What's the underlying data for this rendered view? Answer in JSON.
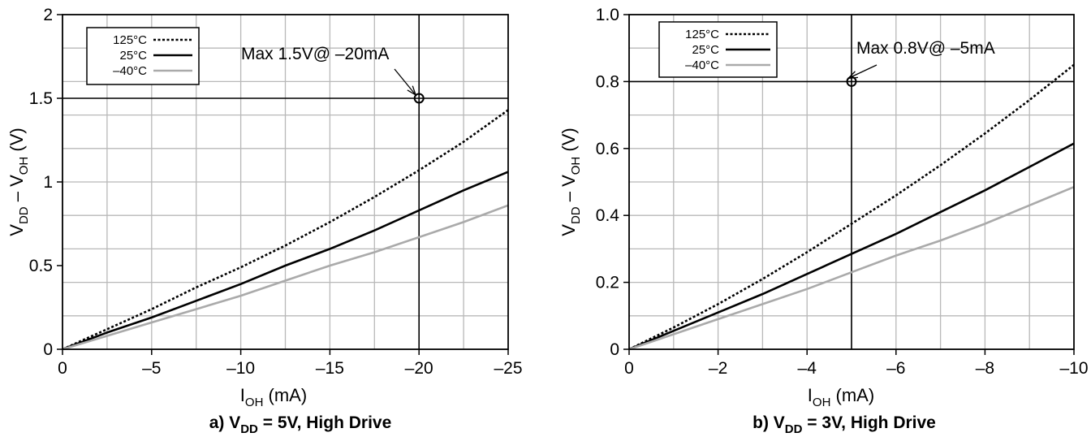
{
  "chart_data": [
    {
      "type": "line",
      "caption": {
        "pre": "a) V",
        "sub": "DD",
        "post": " = 5V, High Drive"
      },
      "xlabel": {
        "main": "I",
        "sub": "OH",
        "post": " (mA)"
      },
      "ylabel": {
        "pre": "V",
        "sub1": "DD",
        "mid": " – V",
        "sub2": "OH",
        "post": " (V)"
      },
      "xlim": [
        0,
        -25
      ],
      "ylim": [
        0,
        2
      ],
      "x_ticks": [
        0,
        -5,
        -10,
        -15,
        -20,
        -25
      ],
      "x_tick_labels": [
        "0",
        "–5",
        "–10",
        "–15",
        "–20",
        "–25"
      ],
      "y_ticks": [
        0,
        0.5,
        1,
        1.5,
        2
      ],
      "y_tick_labels": [
        "0",
        "0.5",
        "1",
        "1.5",
        "2"
      ],
      "grid": true,
      "legend_position": "top-left",
      "series": [
        {
          "name": "125°C",
          "style": "dotted",
          "color": "#000000",
          "x": [
            0,
            -2.5,
            -5,
            -7.5,
            -10,
            -12.5,
            -15,
            -17.5,
            -20,
            -22.5,
            -25
          ],
          "y": [
            0,
            0.12,
            0.24,
            0.37,
            0.49,
            0.62,
            0.76,
            0.91,
            1.07,
            1.24,
            1.43
          ]
        },
        {
          "name": "25°C",
          "style": "solid",
          "color": "#000000",
          "x": [
            0,
            -2.5,
            -5,
            -7.5,
            -10,
            -12.5,
            -15,
            -17.5,
            -20,
            -22.5,
            -25
          ],
          "y": [
            0,
            0.1,
            0.19,
            0.29,
            0.39,
            0.5,
            0.6,
            0.71,
            0.83,
            0.95,
            1.06
          ]
        },
        {
          "name": "–40°C",
          "style": "solid",
          "color": "#aaaaaa",
          "x": [
            0,
            -2.5,
            -5,
            -7.5,
            -10,
            -12.5,
            -15,
            -17.5,
            -20,
            -22.5,
            -25
          ],
          "y": [
            0,
            0.08,
            0.16,
            0.24,
            0.32,
            0.41,
            0.5,
            0.58,
            0.67,
            0.76,
            0.86
          ]
        }
      ],
      "max_point": {
        "x": -20,
        "y": 1.5,
        "label": "Max 1.5V@ –20mA"
      }
    },
    {
      "type": "line",
      "caption": {
        "pre": "b) V",
        "sub": "DD",
        "post": " = 3V, High Drive"
      },
      "xlabel": {
        "main": "I",
        "sub": "OH",
        "post": " (mA)"
      },
      "ylabel": {
        "pre": "V",
        "sub1": "DD",
        "mid": " – V",
        "sub2": "OH",
        "post": " (V)"
      },
      "xlim": [
        0,
        -10
      ],
      "ylim": [
        0,
        1.0
      ],
      "x_ticks": [
        0,
        -2,
        -4,
        -6,
        -8,
        -10
      ],
      "x_tick_labels": [
        "0",
        "–2",
        "–4",
        "–6",
        "–8",
        "–10"
      ],
      "y_ticks": [
        0,
        0.2,
        0.4,
        0.6,
        0.8,
        1.0
      ],
      "y_tick_labels": [
        "0",
        "0.2",
        "0.4",
        "0.6",
        "0.8",
        "1.0"
      ],
      "grid": true,
      "legend_position": "top-left",
      "series": [
        {
          "name": "125°C",
          "style": "dotted",
          "color": "#000000",
          "x": [
            0,
            -1,
            -2,
            -3,
            -4,
            -5,
            -6,
            -7,
            -8,
            -9,
            -10
          ],
          "y": [
            0,
            0.065,
            0.135,
            0.21,
            0.29,
            0.375,
            0.46,
            0.55,
            0.645,
            0.745,
            0.85
          ]
        },
        {
          "name": "25°C",
          "style": "solid",
          "color": "#000000",
          "x": [
            0,
            -1,
            -2,
            -3,
            -4,
            -5,
            -6,
            -7,
            -8,
            -9,
            -10
          ],
          "y": [
            0,
            0.055,
            0.11,
            0.165,
            0.225,
            0.285,
            0.345,
            0.41,
            0.475,
            0.545,
            0.615
          ]
        },
        {
          "name": "–40°C",
          "style": "solid",
          "color": "#aaaaaa",
          "x": [
            0,
            -1,
            -2,
            -3,
            -4,
            -5,
            -6,
            -7,
            -8,
            -9,
            -10
          ],
          "y": [
            0,
            0.045,
            0.09,
            0.135,
            0.18,
            0.23,
            0.28,
            0.325,
            0.375,
            0.43,
            0.485
          ]
        }
      ],
      "max_point": {
        "x": -5,
        "y": 0.8,
        "label": "Max 0.8V@ –5mA"
      }
    }
  ]
}
